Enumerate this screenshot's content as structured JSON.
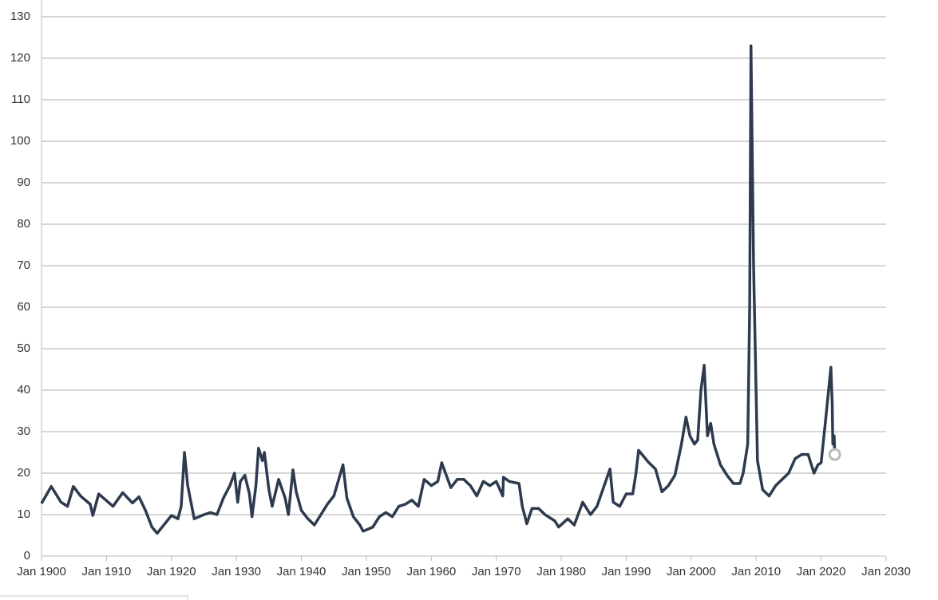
{
  "chart_data": {
    "type": "line",
    "xlim": [
      1900,
      2030
    ],
    "ylim": [
      0,
      130
    ],
    "xticks": [
      {
        "value": 1900,
        "label": "Jan 1900"
      },
      {
        "value": 1910,
        "label": "Jan 1910"
      },
      {
        "value": 1920,
        "label": "Jan 1920"
      },
      {
        "value": 1930,
        "label": "Jan 1930"
      },
      {
        "value": 1940,
        "label": "Jan 1940"
      },
      {
        "value": 1950,
        "label": "Jan 1950"
      },
      {
        "value": 1960,
        "label": "Jan 1960"
      },
      {
        "value": 1970,
        "label": "Jan 1970"
      },
      {
        "value": 1980,
        "label": "Jan 1980"
      },
      {
        "value": 1990,
        "label": "Jan 1990"
      },
      {
        "value": 2000,
        "label": "Jan 2000"
      },
      {
        "value": 2010,
        "label": "Jan 2010"
      },
      {
        "value": 2020,
        "label": "Jan 2020"
      },
      {
        "value": 2030,
        "label": "Jan 2030"
      }
    ],
    "yticks": [
      0,
      10,
      20,
      30,
      40,
      50,
      60,
      70,
      80,
      90,
      100,
      110,
      120,
      130
    ],
    "grid": true,
    "series": [
      {
        "color": "#2e3a4e",
        "x": [
          1900,
          1901.5,
          1903,
          1904,
          1904.9,
          1906,
          1907.5,
          1907.9,
          1908.8,
          1911,
          1912.5,
          1914,
          1915,
          1916,
          1917,
          1917.8,
          1920,
          1921,
          1921.5,
          1922,
          1922.5,
          1923.5,
          1925,
          1926,
          1927,
          1928,
          1929,
          1929.7,
          1930.2,
          1930.6,
          1931.3,
          1932,
          1932.4,
          1933,
          1933.4,
          1934,
          1934.3,
          1935,
          1935.5,
          1936.5,
          1937.5,
          1938,
          1938.7,
          1939.2,
          1940,
          1941,
          1942,
          1943,
          1944,
          1945,
          1946.4,
          1947,
          1948,
          1949,
          1949.5,
          1951,
          1952,
          1953,
          1954,
          1955,
          1956,
          1957,
          1958,
          1958.9,
          1960,
          1961,
          1961.6,
          1963,
          1964,
          1965,
          1966,
          1967,
          1968,
          1969,
          1970,
          1971,
          1971.1,
          1972,
          1973.5,
          1974,
          1974.7,
          1975.5,
          1976.5,
          1977.5,
          1979,
          1979.6,
          1981,
          1982,
          1983.3,
          1984.5,
          1985.5,
          1986.5,
          1987.5,
          1988,
          1989,
          1990,
          1991,
          1991.5,
          1991.9,
          1993.5,
          1994.5,
          1995.5,
          1996.5,
          1997.5,
          1998.5,
          1999.2,
          1999.8,
          2000.5,
          2001,
          2001.5,
          2002,
          2002.5,
          2003,
          2003.5,
          2004.5,
          2005.5,
          2006.5,
          2007.5,
          2008,
          2008.7,
          2009.0,
          2009.2,
          2009.6,
          2010.2,
          2011,
          2012,
          2013,
          2014,
          2015,
          2016,
          2017,
          2018,
          2018.9,
          2019.5,
          2020,
          2020.7,
          2021.5,
          2021.7,
          2021.8,
          2022,
          2022.1
        ],
        "values": [
          12.7,
          16.8,
          13,
          12,
          16.8,
          14.5,
          12.5,
          9.8,
          15,
          12,
          15.3,
          12.8,
          14.3,
          11,
          7,
          5.5,
          9.8,
          9,
          12,
          25,
          17,
          9,
          10,
          10.5,
          10,
          14,
          17,
          20,
          13,
          18,
          19.5,
          15,
          9.5,
          17,
          26,
          23,
          25,
          16,
          12,
          18.5,
          14,
          10,
          20.8,
          15.5,
          11,
          9,
          7.5,
          10,
          12.5,
          14.5,
          22,
          14,
          9.5,
          7.5,
          6,
          7,
          9.5,
          10.5,
          9.5,
          12,
          12.5,
          13.5,
          12,
          18.5,
          17,
          18,
          22.5,
          16.5,
          18.5,
          18.5,
          17,
          14.5,
          18,
          17,
          18,
          14.5,
          19,
          18,
          17.5,
          12,
          7.8,
          11.5,
          11.5,
          10,
          8.5,
          7,
          9,
          7.5,
          13,
          10,
          12,
          16.5,
          21,
          13,
          12,
          15,
          15,
          20,
          25.5,
          22.5,
          21,
          15.5,
          17,
          19.5,
          27,
          33.5,
          29,
          27,
          28,
          40,
          46,
          29,
          32,
          27,
          22,
          19.5,
          17.5,
          17.5,
          20,
          27,
          60,
          123,
          70,
          23,
          16,
          14.5,
          17,
          18.5,
          20,
          23.5,
          24.5,
          24.5,
          20,
          22,
          22.5,
          33,
          45.5,
          37,
          27,
          29,
          24.5
        ]
      }
    ]
  }
}
